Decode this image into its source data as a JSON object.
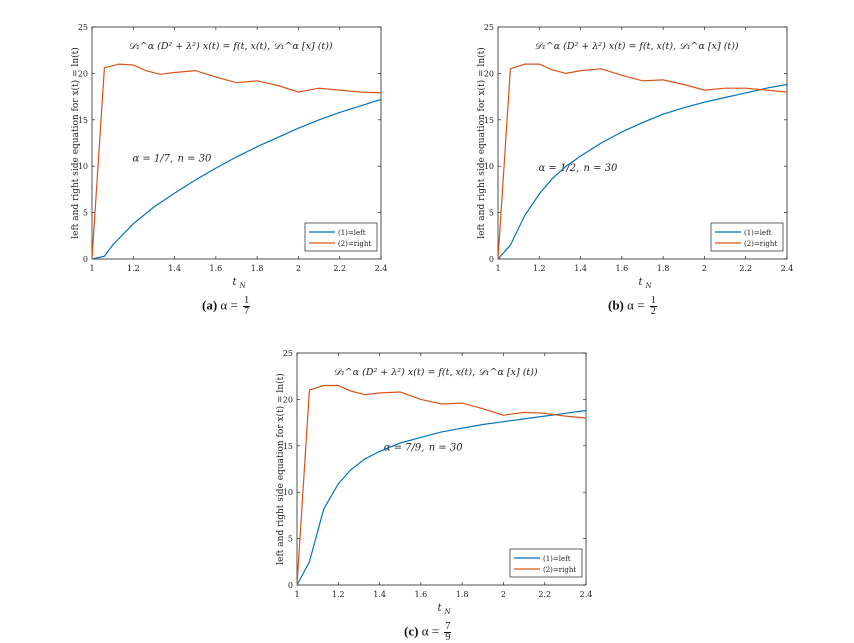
{
  "colors": {
    "left": "#0072BD",
    "right": "#D95319",
    "axis": "#262626"
  },
  "captions": [
    {
      "label": "(a)",
      "prefix": "α =",
      "num": "1",
      "den": "7"
    },
    {
      "label": "(b)",
      "prefix": "α =",
      "num": "1",
      "den": "2"
    },
    {
      "label": "(c)",
      "prefix": "α =",
      "num": "7",
      "den": "9"
    }
  ],
  "chart_data": [
    {
      "type": "line",
      "title": "𝒟₁^α (D² + λ²) x(t) = f(t, x(t), 𝒟₁^α [x] (t))",
      "xlabel": "t_N",
      "ylabel": "left and right side equation for x(t) = ln(t)",
      "annotation": {
        "alpha": "α = 1/7,",
        "n": "n = 30"
      },
      "xlim": [
        1,
        2.4
      ],
      "ylim": [
        0,
        25
      ],
      "xticks": [
        "1",
        "1.2",
        "1.4",
        "1.6",
        "1.8",
        "2",
        "2.2",
        "2.4"
      ],
      "yticks": [
        "0",
        "5",
        "10",
        "15",
        "20",
        "25"
      ],
      "legend": {
        "position": "bottom-right",
        "entries": [
          "(1)=left",
          "(2)=right"
        ]
      },
      "series": [
        {
          "name": "(1)=left",
          "x": [
            1,
            1.06,
            1.1,
            1.2,
            1.3,
            1.4,
            1.5,
            1.6,
            1.7,
            1.8,
            1.9,
            2,
            2.1,
            2.2,
            2.3,
            2.4
          ],
          "y": [
            0,
            0.3,
            1.5,
            3.8,
            5.6,
            7.1,
            8.5,
            9.8,
            11.0,
            12.1,
            13.1,
            14.1,
            15.0,
            15.8,
            16.5,
            17.2
          ]
        },
        {
          "name": "(2)=right",
          "x": [
            1,
            1.06,
            1.13,
            1.2,
            1.26,
            1.33,
            1.4,
            1.5,
            1.6,
            1.7,
            1.8,
            1.9,
            2,
            2.1,
            2.2,
            2.3,
            2.4
          ],
          "y": [
            0,
            20.6,
            21.0,
            20.9,
            20.3,
            19.9,
            20.1,
            20.3,
            19.6,
            19.0,
            19.2,
            18.7,
            18.0,
            18.4,
            18.2,
            18.0,
            17.9
          ]
        }
      ]
    },
    {
      "type": "line",
      "title": "𝒟₁^α (D² + λ²) x(t) = f(t, x(t), 𝒟₁^α [x] (t))",
      "xlabel": "t_N",
      "ylabel": "left and right side equation for x(t) = ln(t)",
      "annotation": {
        "alpha": "α = 1/2,",
        "n": "n = 30"
      },
      "xlim": [
        1,
        2.4
      ],
      "ylim": [
        0,
        25
      ],
      "xticks": [
        "1",
        "1.2",
        "1.4",
        "1.6",
        "1.8",
        "2",
        "2.2",
        "2.4"
      ],
      "yticks": [
        "0",
        "5",
        "10",
        "15",
        "20",
        "25"
      ],
      "legend": {
        "position": "bottom-right",
        "entries": [
          "(1)=left",
          "(2)=right"
        ]
      },
      "series": [
        {
          "name": "(1)=left",
          "x": [
            1,
            1.06,
            1.13,
            1.2,
            1.26,
            1.33,
            1.4,
            1.5,
            1.6,
            1.7,
            1.8,
            1.9,
            2,
            2.1,
            2.2,
            2.3,
            2.4
          ],
          "y": [
            0,
            1.5,
            4.7,
            7.0,
            8.6,
            10.0,
            11.1,
            12.5,
            13.7,
            14.7,
            15.6,
            16.3,
            16.9,
            17.4,
            17.9,
            18.4,
            18.8
          ]
        },
        {
          "name": "(2)=right",
          "x": [
            1,
            1.06,
            1.13,
            1.2,
            1.26,
            1.33,
            1.4,
            1.5,
            1.6,
            1.7,
            1.8,
            1.9,
            2,
            2.1,
            2.2,
            2.3,
            2.4
          ],
          "y": [
            0,
            20.5,
            21.0,
            21.0,
            20.4,
            20.0,
            20.3,
            20.5,
            19.8,
            19.2,
            19.3,
            18.8,
            18.2,
            18.4,
            18.4,
            18.2,
            18.0
          ]
        }
      ]
    },
    {
      "type": "line",
      "title": "𝒟₁^α (D² + λ²) x(t) = f(t, x(t), 𝒟₁^α [x] (t))",
      "xlabel": "t_N",
      "ylabel": "left and right side equation for x(t) = ln(t)",
      "annotation": {
        "alpha": "α = 7/9,",
        "n": "n = 30"
      },
      "xlim": [
        1,
        2.4
      ],
      "ylim": [
        0,
        25
      ],
      "xticks": [
        "1",
        "1.2",
        "1.4",
        "1.6",
        "1.8",
        "2",
        "2.2",
        "2.4"
      ],
      "yticks": [
        "0",
        "5",
        "10",
        "15",
        "20",
        "25"
      ],
      "legend": {
        "position": "bottom-right",
        "entries": [
          "(1)=left",
          "(2)=right"
        ]
      },
      "series": [
        {
          "name": "(1)=left",
          "x": [
            1,
            1.06,
            1.13,
            1.2,
            1.26,
            1.33,
            1.4,
            1.5,
            1.6,
            1.7,
            1.8,
            1.9,
            2,
            2.1,
            2.2,
            2.3,
            2.4
          ],
          "y": [
            0,
            2.5,
            8.2,
            10.9,
            12.4,
            13.6,
            14.4,
            15.3,
            15.9,
            16.5,
            16.9,
            17.3,
            17.6,
            17.9,
            18.2,
            18.5,
            18.8
          ]
        },
        {
          "name": "(2)=right",
          "x": [
            1,
            1.06,
            1.13,
            1.2,
            1.26,
            1.33,
            1.4,
            1.5,
            1.6,
            1.7,
            1.8,
            1.9,
            2,
            2.1,
            2.2,
            2.3,
            2.4
          ],
          "y": [
            0,
            21.0,
            21.5,
            21.5,
            20.9,
            20.5,
            20.7,
            20.8,
            20.0,
            19.5,
            19.6,
            19.0,
            18.3,
            18.6,
            18.5,
            18.2,
            18.0
          ]
        }
      ]
    }
  ]
}
